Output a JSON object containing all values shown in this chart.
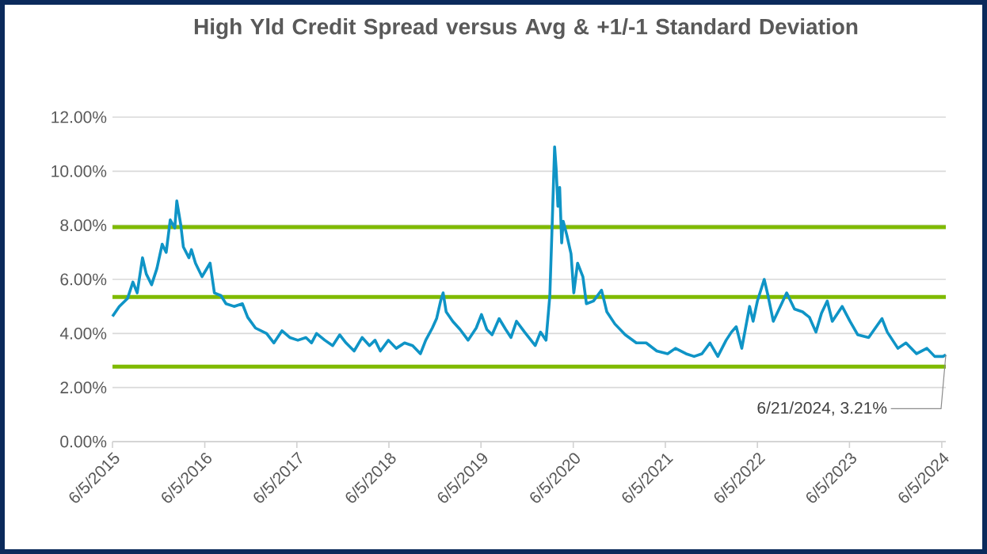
{
  "chart_data": {
    "type": "line",
    "title": "High Yld Credit Spread versus Avg & +1/-1 Standard Deviation",
    "xlim": [
      "2015-06-05",
      "2024-06-21"
    ],
    "xticks": [
      {
        "value": "2015-06-05",
        "label": "6/5/2015"
      },
      {
        "value": "2016-06-05",
        "label": "6/5/2016"
      },
      {
        "value": "2017-06-05",
        "label": "6/5/2017"
      },
      {
        "value": "2018-06-05",
        "label": "6/5/2018"
      },
      {
        "value": "2019-06-05",
        "label": "6/5/2019"
      },
      {
        "value": "2020-06-05",
        "label": "6/5/2020"
      },
      {
        "value": "2021-06-05",
        "label": "6/5/2021"
      },
      {
        "value": "2022-06-05",
        "label": "6/5/2022"
      },
      {
        "value": "2023-06-05",
        "label": "6/5/2023"
      },
      {
        "value": "2024-06-05",
        "label": "6/5/2024"
      }
    ],
    "ylim": [
      0,
      12
    ],
    "yticks": [
      {
        "value": 0,
        "label": "0.00%"
      },
      {
        "value": 2,
        "label": "2.00%"
      },
      {
        "value": 4,
        "label": "4.00%"
      },
      {
        "value": 6,
        "label": "6.00%"
      },
      {
        "value": 8,
        "label": "8.00%"
      },
      {
        "value": 10,
        "label": "10.00%"
      },
      {
        "value": 12,
        "label": "12.00%"
      }
    ],
    "grid": "y",
    "series": [
      {
        "color": "#0f94c6",
        "x": [
          "2015-06-05",
          "2015-07-02",
          "2015-08-04",
          "2015-08-25",
          "2015-09-11",
          "2015-10-02",
          "2015-10-17",
          "2015-11-07",
          "2015-11-28",
          "2015-12-19",
          "2016-01-04",
          "2016-01-20",
          "2016-02-07",
          "2016-02-15",
          "2016-03-02",
          "2016-03-12",
          "2016-04-03",
          "2016-04-13",
          "2016-04-29",
          "2016-05-25",
          "2016-06-26",
          "2016-07-13",
          "2016-08-08",
          "2016-08-28",
          "2016-09-29",
          "2016-11-01",
          "2016-11-22",
          "2016-12-23",
          "2017-02-05",
          "2017-03-06",
          "2017-04-07",
          "2017-05-08",
          "2017-06-09",
          "2017-07-11",
          "2017-08-02",
          "2017-08-22",
          "2017-09-24",
          "2017-10-25",
          "2017-11-22",
          "2017-12-17",
          "2018-01-18",
          "2018-02-19",
          "2018-03-20",
          "2018-04-11",
          "2018-05-02",
          "2018-06-03",
          "2018-07-04",
          "2018-08-06",
          "2018-09-07",
          "2018-10-08",
          "2018-10-29",
          "2018-11-24",
          "2018-12-11",
          "2018-12-27",
          "2019-01-06",
          "2019-01-18",
          "2019-02-13",
          "2019-03-14",
          "2019-04-15",
          "2019-05-17",
          "2019-06-07",
          "2019-06-28",
          "2019-07-19",
          "2019-08-16",
          "2019-09-11",
          "2019-10-02",
          "2019-10-24",
          "2019-11-25",
          "2020-01-06",
          "2020-01-27",
          "2020-02-18",
          "2020-03-04",
          "2020-03-13",
          "2020-03-23",
          "2020-03-29",
          "2020-04-05",
          "2020-04-12",
          "2020-04-20",
          "2020-04-26",
          "2020-05-10",
          "2020-05-27",
          "2020-06-07",
          "2020-06-22",
          "2020-07-13",
          "2020-07-27",
          "2020-08-24",
          "2020-09-25",
          "2020-10-16",
          "2020-11-17",
          "2020-12-28",
          "2021-02-10",
          "2021-03-21",
          "2021-05-02",
          "2021-06-14",
          "2021-07-15",
          "2021-08-26",
          "2021-09-27",
          "2021-10-28",
          "2021-11-29",
          "2021-12-30",
          "2022-02-01",
          "2022-02-22",
          "2022-03-13",
          "2022-04-04",
          "2022-05-05",
          "2022-05-19",
          "2022-06-05",
          "2022-07-02",
          "2022-07-17",
          "2022-08-07",
          "2022-09-09",
          "2022-09-29",
          "2022-10-30",
          "2022-12-01",
          "2022-12-28",
          "2023-01-23",
          "2023-02-14",
          "2023-03-09",
          "2023-03-29",
          "2023-05-07",
          "2023-06-07",
          "2023-07-08",
          "2023-08-20",
          "2023-10-12",
          "2023-11-02",
          "2023-12-14",
          "2024-01-15",
          "2024-02-26",
          "2024-04-07",
          "2024-05-08",
          "2024-06-10",
          "2024-06-21"
        ],
        "values": [
          4.63,
          5.0,
          5.3,
          5.9,
          5.5,
          6.8,
          6.2,
          5.8,
          6.4,
          7.3,
          7.0,
          8.2,
          7.9,
          8.9,
          8.0,
          7.2,
          6.8,
          7.1,
          6.6,
          6.1,
          6.6,
          5.5,
          5.4,
          5.1,
          5.0,
          5.1,
          4.6,
          4.2,
          4.0,
          3.65,
          4.1,
          3.85,
          3.75,
          3.85,
          3.65,
          4.0,
          3.75,
          3.55,
          3.95,
          3.65,
          3.35,
          3.85,
          3.55,
          3.75,
          3.35,
          3.75,
          3.45,
          3.65,
          3.55,
          3.25,
          3.75,
          4.2,
          4.55,
          5.2,
          5.5,
          4.8,
          4.45,
          4.15,
          3.75,
          4.2,
          4.7,
          4.15,
          3.95,
          4.55,
          4.15,
          3.85,
          4.45,
          4.05,
          3.55,
          4.05,
          3.75,
          5.4,
          7.95,
          10.9,
          10.1,
          8.7,
          9.4,
          7.35,
          8.15,
          7.65,
          6.95,
          5.5,
          6.6,
          6.1,
          5.1,
          5.2,
          5.6,
          4.8,
          4.35,
          3.95,
          3.65,
          3.65,
          3.35,
          3.25,
          3.45,
          3.25,
          3.15,
          3.25,
          3.65,
          3.15,
          3.75,
          4.05,
          4.25,
          3.45,
          5.0,
          4.45,
          5.2,
          6.0,
          5.4,
          4.45,
          5.1,
          5.5,
          4.9,
          4.8,
          4.6,
          4.05,
          4.75,
          5.2,
          4.45,
          5.0,
          4.45,
          3.95,
          3.85,
          4.55,
          4.05,
          3.45,
          3.65,
          3.25,
          3.45,
          3.15,
          3.15,
          3.21
        ]
      }
    ],
    "ref_lines": [
      {
        "axis": "y",
        "value": 7.93,
        "color": "#7fba00"
      },
      {
        "axis": "y",
        "value": 5.35,
        "color": "#7fba00"
      },
      {
        "axis": "y",
        "value": 2.77,
        "color": "#7fba00"
      }
    ],
    "annotations": [
      {
        "text": "6/21/2024, 3.21%",
        "x": "2024-06-21",
        "y": 3.21
      }
    ]
  }
}
